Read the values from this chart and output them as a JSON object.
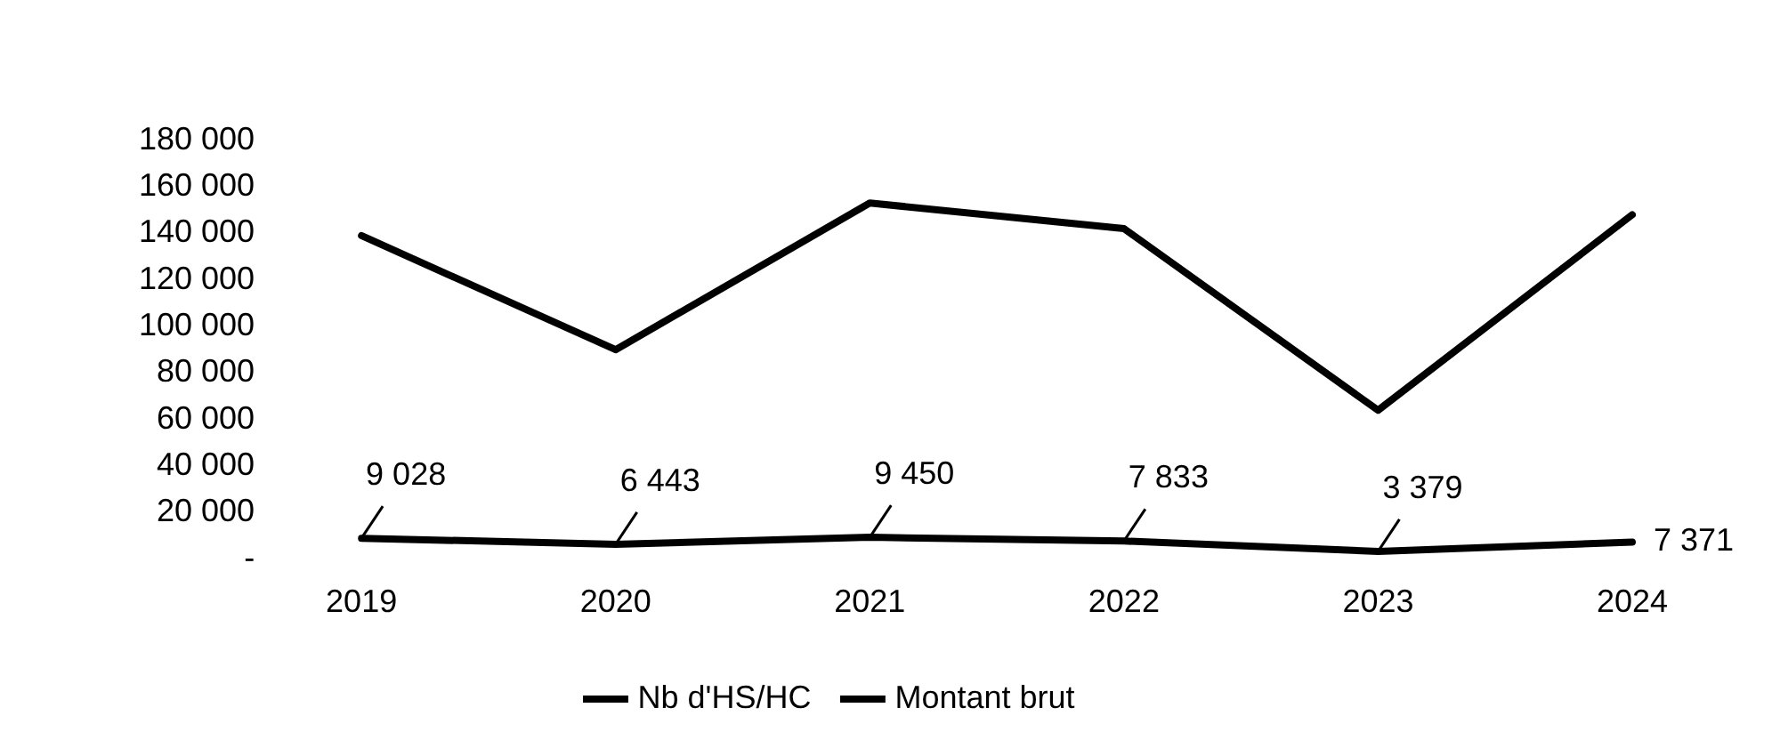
{
  "chart_data": {
    "type": "line",
    "categories": [
      "2019",
      "2020",
      "2021",
      "2022",
      "2023",
      "2024"
    ],
    "series": [
      {
        "name": "Nb d'HS/HC",
        "color": "#000000",
        "values": [
          9028,
          6443,
          9450,
          7833,
          3379,
          7371
        ],
        "value_labels": [
          "9 028",
          "6 443",
          "9 450",
          "7 833",
          "3 379",
          "7 371"
        ]
      },
      {
        "name": "Montant brut",
        "color": "#000000",
        "values": [
          139000,
          90000,
          153000,
          142000,
          64000,
          148000
        ]
      }
    ],
    "ylim": [
      0,
      180000
    ],
    "yticks": [
      {
        "value": 0,
        "label": "-"
      },
      {
        "value": 20000,
        "label": "20 000"
      },
      {
        "value": 40000,
        "label": "40 000"
      },
      {
        "value": 60000,
        "label": "60 000"
      },
      {
        "value": 80000,
        "label": "80 000"
      },
      {
        "value": 100000,
        "label": "100 000"
      },
      {
        "value": 120000,
        "label": "120 000"
      },
      {
        "value": 140000,
        "label": "140 000"
      },
      {
        "value": 160000,
        "label": "160 000"
      },
      {
        "value": 180000,
        "label": "180 000"
      }
    ],
    "grid": false,
    "legend": "bottom",
    "marker": "none",
    "line_style": "solid"
  }
}
